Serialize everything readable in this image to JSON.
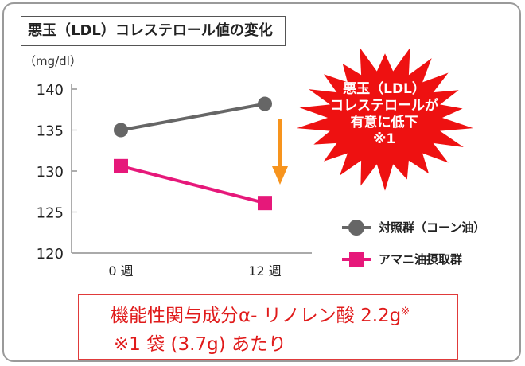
{
  "chart_data": {
    "type": "line",
    "title": "悪玉（LDL）コレステロール値の変化",
    "ylabel": "（mg/dl）",
    "categories": [
      "0 週",
      "12 週"
    ],
    "ylim": [
      120,
      140
    ],
    "yticks": [
      120,
      125,
      130,
      135,
      140
    ],
    "series": [
      {
        "name": "対照群（コーン油）",
        "values": [
          135.0,
          138.2
        ],
        "color": "#666666",
        "marker": "circle"
      },
      {
        "name": "アマニ油摂取群",
        "values": [
          130.6,
          126.1
        ],
        "color": "#e6187a",
        "marker": "square"
      }
    ],
    "legend_position": "right",
    "grid": false,
    "annotation": {
      "lines": [
        "悪玉（LDL）",
        "コレステロールが",
        "有意に低下",
        "※1"
      ],
      "arrow_color": "#f7941d",
      "burst_color": "#ee1111"
    }
  },
  "note": {
    "line1": "機能性関与成分α- リノレン酸 2.2g",
    "line1_sup": "※",
    "line2": "※1 袋 (3.7g) あたり",
    "color": "#e01b1b"
  }
}
